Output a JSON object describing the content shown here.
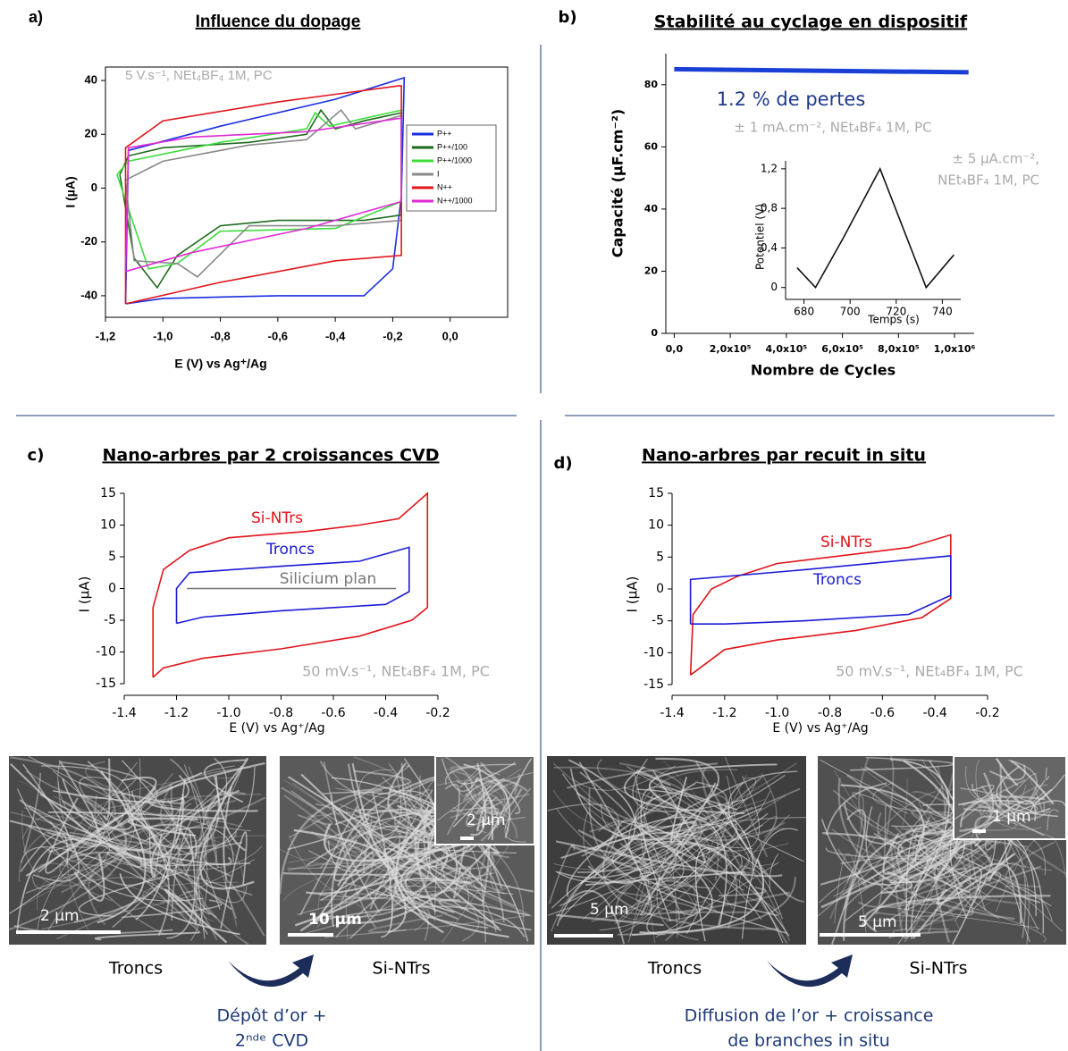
{
  "chart_data": [
    {
      "type": "line",
      "panel": "a)",
      "title": "Influence du dopage",
      "xlabel": "E (V) vs Ag⁺/Ag",
      "ylabel": "I (µA)",
      "annotations": [
        "5 V.s⁻¹, NEt₄BF₄ 1M, PC"
      ],
      "xlim": [
        -1.2,
        0.2
      ],
      "xticks": [
        {
          "value": -1.2,
          "label": "-1,2"
        },
        {
          "value": -1.0,
          "label": "-1,0"
        },
        {
          "value": -0.8,
          "label": "-0,8"
        },
        {
          "value": -0.6,
          "label": "-0,6"
        },
        {
          "value": -0.4,
          "label": "-0,4"
        },
        {
          "value": -0.2,
          "label": "-0,2"
        },
        {
          "value": 0,
          "label": "0,0"
        }
      ],
      "ylim": [
        -48,
        45
      ],
      "yticks": [
        40,
        20,
        0,
        -20,
        -40
      ],
      "series": [
        {
          "name": "P++",
          "color": "#1a2ee0",
          "x": [
            -1.13,
            -1.12,
            -0.8,
            -0.4,
            -0.16,
            -0.17,
            -0.2,
            -0.3,
            -0.6,
            -1.0,
            -1.13
          ],
          "values": [
            -43,
            14,
            23,
            33,
            41,
            -3,
            -30,
            -40,
            -40,
            -41,
            -43
          ]
        },
        {
          "name": "P++/100",
          "color": "#1e6b1e",
          "x": [
            -1.15,
            -1.12,
            -1.0,
            -0.7,
            -0.5,
            -0.45,
            -0.4,
            -0.3,
            -0.17,
            -0.17,
            -0.3,
            -0.6,
            -0.8,
            -0.95,
            -1.02,
            -1.1,
            -1.15
          ],
          "values": [
            5,
            12,
            15,
            17,
            20,
            29,
            22,
            25,
            28,
            -10,
            -12,
            -12,
            -14,
            -25,
            -37,
            -26,
            5
          ]
        },
        {
          "name": "P++/1000",
          "color": "#3ddc3d",
          "x": [
            -1.16,
            -1.12,
            -0.8,
            -0.5,
            -0.47,
            -0.42,
            -0.17,
            -0.17,
            -0.4,
            -0.8,
            -0.95,
            -1.05,
            -1.16
          ],
          "values": [
            5,
            10,
            17,
            22,
            28,
            23,
            29,
            -5,
            -15,
            -16,
            -28,
            -30,
            5
          ]
        },
        {
          "name": "I",
          "color": "#8a8a8a",
          "x": [
            -1.13,
            -1.0,
            -0.7,
            -0.5,
            -0.38,
            -0.33,
            -0.17,
            -0.17,
            -0.4,
            -0.7,
            -0.88,
            -0.95,
            -1.1,
            -1.13
          ],
          "values": [
            3,
            10,
            16,
            18,
            29,
            22,
            27,
            -12,
            -14,
            -14,
            -33,
            -28,
            -27,
            3
          ]
        },
        {
          "name": "N++",
          "color": "#e0141b",
          "x": [
            -1.13,
            -1.13,
            -1.0,
            -0.6,
            -0.18,
            -0.17,
            -0.17,
            -0.4,
            -0.8,
            -1.13
          ],
          "values": [
            -43,
            15,
            25,
            32,
            38,
            38,
            -25,
            -27,
            -35,
            -43
          ]
        },
        {
          "name": "N++/1000",
          "color": "#e02ad6",
          "x": [
            -1.13,
            -1.12,
            -0.9,
            -0.5,
            -0.17,
            -0.17,
            -0.5,
            -0.9,
            -1.13
          ],
          "values": [
            -31,
            15,
            19,
            21,
            26,
            -5,
            -15,
            -24,
            -31
          ]
        }
      ]
    },
    {
      "type": "line",
      "panel": "b)",
      "title": "Stabilité au cyclage en dispositif",
      "xlabel": "Nombre de Cycles",
      "ylabel": "Capacité (µF.cm⁻²)",
      "annotations": [
        "1.2 % de pertes",
        "± 1 mA.cm⁻², NEt₄BF₄ 1M, PC"
      ],
      "xlim": [
        -30000,
        1070000
      ],
      "xticks": [
        {
          "value": 0,
          "label": "0,0"
        },
        {
          "value": 200000,
          "label": "2,0x10⁵"
        },
        {
          "value": 400000,
          "label": "4,0x10⁵"
        },
        {
          "value": 600000,
          "label": "6,0x10⁵"
        },
        {
          "value": 800000,
          "label": "8,0x10⁵"
        },
        {
          "value": 1000000,
          "label": "1,0x10⁶"
        }
      ],
      "ylim": [
        0,
        90
      ],
      "yticks": [
        0,
        20,
        40,
        60,
        80
      ],
      "series": [
        {
          "color": "#1a3fd6",
          "x": [
            0,
            1050000
          ],
          "values": [
            85,
            84
          ]
        }
      ]
    },
    {
      "type": "line",
      "xlabel": "Temps (s)",
      "ylabel": "Potentiel (V)",
      "annotations": [
        "± 5 µA.cm⁻²,",
        "NEt₄BF₄ 1M, PC"
      ],
      "xlim": [
        672,
        748
      ],
      "xticks": [
        680,
        700,
        720,
        740
      ],
      "ylim": [
        -0.12,
        1.28
      ],
      "yticks": [
        0,
        {
          "value": 0.4,
          "label": "0,4"
        },
        {
          "value": 0.8,
          "label": "0,8"
        },
        {
          "value": 1.2,
          "label": "1,2"
        }
      ],
      "series": [
        {
          "color": "#111111",
          "x": [
            677,
            685,
            697,
            713,
            733,
            745
          ],
          "values": [
            0.2,
            0,
            0.5,
            1.2,
            0,
            0.33
          ]
        }
      ]
    },
    {
      "type": "line",
      "panel": "c)",
      "title": "Nano-arbres par 2 croissances CVD",
      "xlabel": "E (V) vs Ag⁺/Ag",
      "ylabel": "I (µA)",
      "annotations": [
        "50 mV.s⁻¹, NEt₄BF₄ 1M, PC"
      ],
      "xlim": [
        -1.4,
        -0.2
      ],
      "xticks": [
        -1.4,
        -1.2,
        {
          "value": -1.0,
          "label": "-1.0"
        },
        -0.8,
        -0.6,
        -0.4,
        -0.2
      ],
      "ylim": [
        -15,
        15
      ],
      "yticks": [
        15,
        10,
        5,
        0,
        -5,
        -10,
        -15
      ],
      "series": [
        {
          "name": "Si-NTrs",
          "color": "#e0141b",
          "x": [
            -1.29,
            -1.29,
            -1.25,
            -1.15,
            -1.0,
            -0.7,
            -0.5,
            -0.35,
            -0.24,
            -0.24,
            -0.3,
            -0.5,
            -0.8,
            -1.1,
            -1.25,
            -1.29
          ],
          "values": [
            -14,
            -3,
            3,
            6,
            8,
            9,
            10,
            11,
            15,
            -3,
            -5,
            -7.5,
            -9.5,
            -11,
            -12.5,
            -14
          ]
        },
        {
          "name": "Troncs",
          "color": "#1a1ad6",
          "x": [
            -1.2,
            -1.2,
            -1.15,
            -0.8,
            -0.5,
            -0.31,
            -0.31,
            -0.4,
            -0.8,
            -1.1,
            -1.2
          ],
          "values": [
            -5.5,
            0,
            2.5,
            3.5,
            4.3,
            6.5,
            -0.5,
            -2.5,
            -3.5,
            -4.5,
            -5.5
          ]
        },
        {
          "name": "Silicium plan",
          "color": "#777777",
          "x": [
            -1.16,
            -0.36
          ],
          "values": [
            0,
            0
          ]
        }
      ]
    },
    {
      "type": "line",
      "panel": "d)",
      "title": "Nano-arbres par recuit in situ",
      "xlabel": "E (V) vs Ag⁺/Ag",
      "ylabel": "I (µA)",
      "annotations": [
        "50 mV.s⁻¹, NEt₄BF₄ 1M, PC"
      ],
      "xlim": [
        -1.4,
        -0.2
      ],
      "xticks": [
        -1.4,
        -1.2,
        {
          "value": -1.0,
          "label": "-1.0"
        },
        -0.8,
        -0.6,
        -0.4,
        -0.2
      ],
      "ylim": [
        -15,
        15
      ],
      "yticks": [
        15,
        10,
        5,
        0,
        -5,
        -10,
        -15
      ],
      "series": [
        {
          "name": "Si-NTrs",
          "color": "#e0141b",
          "x": [
            -1.33,
            -1.32,
            -1.25,
            -1.15,
            -1.0,
            -0.7,
            -0.5,
            -0.34,
            -0.34,
            -0.45,
            -0.7,
            -1.0,
            -1.2,
            -1.33
          ],
          "values": [
            -13.5,
            -4,
            0,
            2,
            4,
            5.5,
            6.5,
            8.5,
            -1.5,
            -4.5,
            -6.5,
            -8,
            -9.5,
            -13.5
          ]
        },
        {
          "name": "Troncs",
          "color": "#1a1ad6",
          "x": [
            -1.33,
            -1.33,
            -0.9,
            -0.34,
            -0.34,
            -0.5,
            -0.9,
            -1.2,
            -1.33
          ],
          "values": [
            -5.5,
            1.5,
            3,
            5.2,
            -1,
            -4,
            -5,
            -5.5,
            -5.5
          ]
        }
      ]
    }
  ],
  "images": [
    {
      "scale": "2 µm"
    },
    {
      "scale": "10 µm",
      "inset_scale": "2 µm"
    },
    {
      "scale": "5 µm"
    },
    {
      "scale": "5 µm",
      "inset_scale": "1 µm"
    }
  ],
  "captions": {
    "c": {
      "from": "Troncs",
      "to": "Si-NTrs",
      "process": [
        "Dépôt d’or +",
        "2ⁿᵈᵉ CVD"
      ]
    },
    "d": {
      "from": "Troncs",
      "to": "Si-NTrs",
      "process": [
        "Diffusion de l’or + croissance",
        "de branches in situ"
      ]
    }
  }
}
